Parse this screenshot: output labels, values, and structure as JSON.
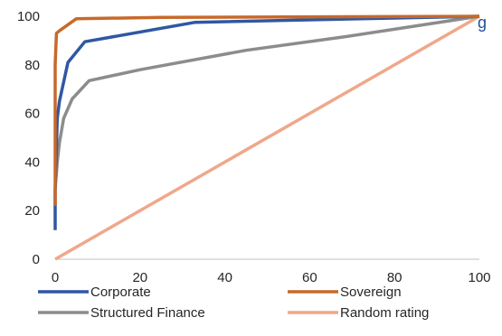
{
  "chart_data": {
    "type": "line",
    "title_partial": "g",
    "xlim": [
      0,
      100
    ],
    "ylim": [
      0,
      100
    ],
    "x_ticks": [
      0,
      20,
      40,
      60,
      80,
      100
    ],
    "y_ticks": [
      0,
      20,
      40,
      60,
      80,
      100
    ],
    "grid": false,
    "legend_position": "bottom",
    "series": [
      {
        "name": "Corporate",
        "color": "#2f57a4",
        "x": [
          0,
          0,
          0,
          0.5,
          1,
          3,
          7,
          33,
          100
        ],
        "y": [
          12,
          20,
          28,
          58,
          65,
          81,
          89.5,
          97.5,
          100
        ]
      },
      {
        "name": "Sovereign",
        "color": "#c8692a",
        "x": [
          0,
          0,
          0,
          0,
          0.3,
          1,
          5,
          25,
          100
        ],
        "y": [
          22,
          28,
          60,
          80,
          93,
          94,
          99,
          99.5,
          100
        ]
      },
      {
        "name": "Structured Finance",
        "color": "#8c8c8c",
        "x": [
          0,
          0.5,
          1,
          2,
          4,
          8,
          20,
          45,
          68,
          100
        ],
        "y": [
          29,
          40,
          48,
          58,
          66,
          73.5,
          78,
          86,
          91.5,
          100
        ]
      },
      {
        "name": "Random rating",
        "color": "#f0a78a",
        "x": [
          0,
          100
        ],
        "y": [
          0,
          100
        ]
      }
    ]
  }
}
